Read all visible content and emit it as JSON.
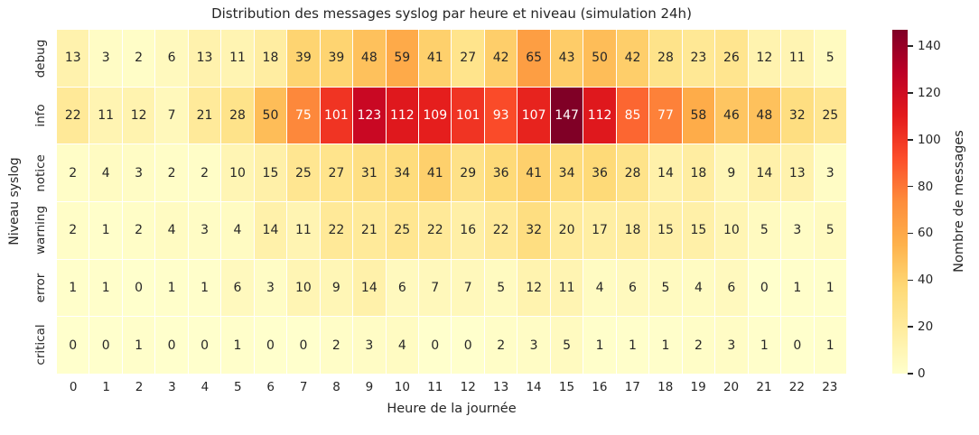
{
  "chart_data": {
    "type": "heatmap",
    "title": "Distribution des messages syslog par heure et niveau (simulation 24h)",
    "xlabel": "Heure de la journée",
    "ylabel": "Niveau syslog",
    "colorbar_label": "Nombre de messages",
    "x_categories": [
      "0",
      "1",
      "2",
      "3",
      "4",
      "5",
      "6",
      "7",
      "8",
      "9",
      "10",
      "11",
      "12",
      "13",
      "14",
      "15",
      "16",
      "17",
      "18",
      "19",
      "20",
      "21",
      "22",
      "23"
    ],
    "y_categories": [
      "debug",
      "info",
      "notice",
      "warning",
      "error",
      "critical"
    ],
    "values": [
      [
        13,
        3,
        2,
        6,
        13,
        11,
        18,
        39,
        39,
        48,
        59,
        41,
        27,
        42,
        65,
        43,
        50,
        42,
        28,
        23,
        26,
        12,
        11,
        5
      ],
      [
        22,
        11,
        12,
        7,
        21,
        28,
        50,
        75,
        101,
        123,
        112,
        109,
        101,
        93,
        107,
        147,
        112,
        85,
        77,
        58,
        46,
        48,
        32,
        25
      ],
      [
        2,
        4,
        3,
        2,
        2,
        10,
        15,
        25,
        27,
        31,
        34,
        41,
        29,
        36,
        41,
        34,
        36,
        28,
        14,
        18,
        9,
        14,
        13,
        3
      ],
      [
        2,
        1,
        2,
        4,
        3,
        4,
        14,
        11,
        22,
        21,
        25,
        22,
        16,
        22,
        32,
        20,
        17,
        18,
        15,
        15,
        10,
        5,
        3,
        5
      ],
      [
        1,
        1,
        0,
        1,
        1,
        6,
        3,
        10,
        9,
        14,
        6,
        7,
        7,
        5,
        12,
        11,
        4,
        6,
        5,
        4,
        6,
        0,
        1,
        1
      ],
      [
        0,
        0,
        1,
        0,
        0,
        1,
        0,
        0,
        2,
        3,
        4,
        0,
        0,
        2,
        3,
        5,
        1,
        1,
        1,
        2,
        3,
        1,
        0,
        1
      ]
    ],
    "vmin": 0,
    "vmax": 147,
    "colorbar_ticks": [
      0,
      20,
      40,
      60,
      80,
      100,
      120,
      140
    ],
    "colormap": "YlOrRd",
    "colormap_stops": [
      "#ffffcc",
      "#ffeda0",
      "#fed976",
      "#feb24c",
      "#fd8d3c",
      "#fc4e2a",
      "#e31a1c",
      "#bd0026",
      "#800026"
    ],
    "grid_line_color": "#ffffff",
    "annotation_dark_color": "#262626",
    "annotation_light_color": "#ffffff",
    "legend_position": "right"
  }
}
